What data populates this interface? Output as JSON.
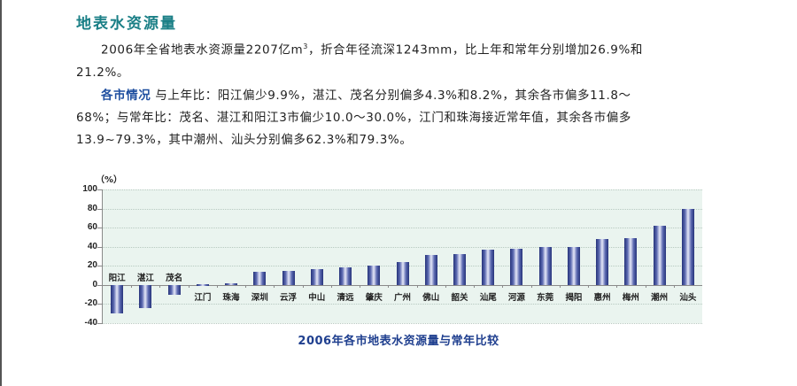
{
  "section": {
    "title": "地表水资源量",
    "paragraph1_line1": "2006年全省地表水资源量2207亿m",
    "paragraph1_sup": "3",
    "paragraph1_line1_rest": "，折合年径流深1243mm，比上年和常年分别增加26.9%和",
    "paragraph1_line2": "21.2%。",
    "paragraph2_lead": "各市情况",
    "paragraph2_line1": " 与上年比：阳江偏少9.9%，湛江、茂名分别偏多4.3%和8.2%，其余各市偏多11.8～",
    "paragraph2_line2": "68%；与常年比：茂名、湛江和阳江3市偏少10.0～30.0%，江门和珠海接近常年值，其余各市偏多",
    "paragraph2_line3": "13.9~79.3%，其中潮州、汕头分别偏多62.3%和79.3%。"
  },
  "chart_data": {
    "type": "bar",
    "title": "2006年各市地表水资源量与常年比较",
    "xlabel": "",
    "ylabel": "（%）",
    "ylim": [
      -40,
      100
    ],
    "yticks": [
      100,
      80,
      60,
      40,
      20,
      0,
      -20,
      -40
    ],
    "grid": true,
    "legend": null,
    "categories": [
      "阳江",
      "湛江",
      "茂名",
      "江门",
      "珠海",
      "深圳",
      "云浮",
      "中山",
      "清远",
      "肇庆",
      "广州",
      "佛山",
      "韶关",
      "汕尾",
      "河源",
      "东莞",
      "揭阳",
      "惠州",
      "梅州",
      "潮州",
      "汕头"
    ],
    "values": [
      -30.0,
      -24.5,
      -10.0,
      0.5,
      1.5,
      13.9,
      14.5,
      16.5,
      18.5,
      20.5,
      24.0,
      31.5,
      32.0,
      36.5,
      37.5,
      39.5,
      40.0,
      48.0,
      49.0,
      62.3,
      79.3
    ],
    "colors": {
      "bar_dark": "#26337a",
      "bar_light": "#e6e8f8",
      "plot_bg": "#eaf4ef",
      "title": "#1f3f8f"
    }
  }
}
